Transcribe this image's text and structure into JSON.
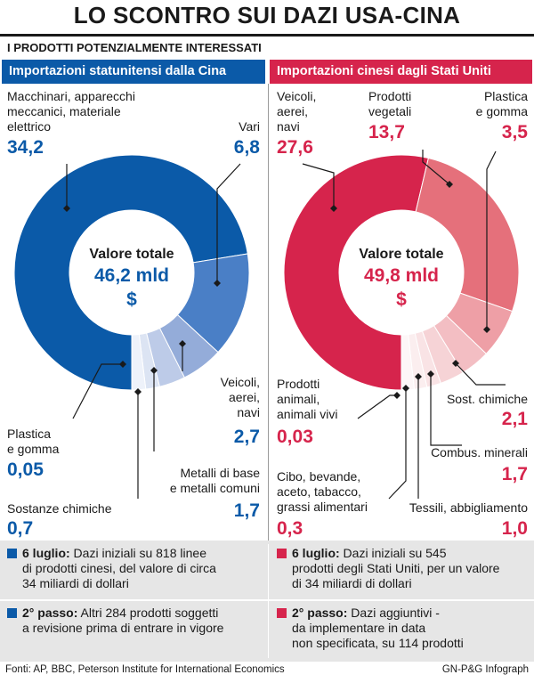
{
  "title": "LO SCONTRO SUI DAZI USA-CINA",
  "subtitle": "I PRODOTTI POTENZIALMENTE INTERESSATI",
  "colors": {
    "blue": "#0b5aa8",
    "red": "#d6244c"
  },
  "left": {
    "header": "Importazioni statunitensi dalla Cina",
    "center_label": "Valore totale",
    "center_value": "46,2 mld",
    "center_unit": "$",
    "labels": {
      "macchinari": "Macchinari, apparecchi\nmeccanici, materiale\nelettrico",
      "vari": "Vari",
      "veicoli": "Veicoli,\naerei,\nnavi",
      "metalli": "Metalli di base\ne metalli comuni",
      "plastica": "Plastica\ne gomma",
      "sostanze": "Sostanze chimiche"
    },
    "values": {
      "macchinari": "34,2",
      "vari": "6,8",
      "veicoli": "2,7",
      "metalli": "1,7",
      "plastica": "0,05",
      "sostanze": "0,7"
    }
  },
  "right": {
    "header": "Importazioni cinesi dagli Stati Uniti",
    "center_label": "Valore totale",
    "center_value": "49,8 mld",
    "center_unit": "$",
    "labels": {
      "veicoli": "Veicoli,\naerei,\nnavi",
      "vegetali": "Prodotti\nvegetali",
      "plastica": "Plastica\ne gomma",
      "animali": "Prodotti\nanimali,\nanimali vivi",
      "cibo": "Cibo, bevande,\naceto, tabacco,\ngrassi alimentari",
      "sostchim": "Sost. chimiche",
      "combus": "Combus. minerali",
      "tessili": "Tessili, abbigliamento"
    },
    "values": {
      "veicoli": "27,6",
      "vegetali": "13,7",
      "plastica": "3,5",
      "animali": "0,03",
      "cibo": "0,3",
      "sostchim": "2,1",
      "combus": "1,7",
      "tessili": "1,0"
    }
  },
  "chart_data": [
    {
      "type": "pie",
      "title": "Importazioni statunitensi dalla Cina",
      "total_label": "Valore totale 46,2 mld $",
      "categories": [
        "Macchinari, apparecchi meccanici, materiale elettrico",
        "Vari",
        "Veicoli, aerei, navi",
        "Metalli di base e metalli comuni",
        "Sostanze chimiche",
        "Plastica e gomma"
      ],
      "values": [
        34.2,
        6.8,
        2.7,
        1.7,
        0.7,
        0.05
      ],
      "colors": [
        "#0b5aa8",
        "#4a7fc6",
        "#94acd9",
        "#bdcbe8",
        "#dce4f3",
        "#eef2fa"
      ]
    },
    {
      "type": "pie",
      "title": "Importazioni cinesi dagli Stati Uniti",
      "total_label": "Valore totale 49,8 mld $",
      "categories": [
        "Veicoli, aerei, navi",
        "Prodotti vegetali",
        "Plastica e gomma",
        "Sost. chimiche",
        "Combus. minerali",
        "Tessili, abbigliamento",
        "Cibo, bevande, aceto, tabacco, grassi alimentari",
        "Prodotti animali, animali vivi"
      ],
      "values": [
        27.6,
        13.7,
        3.5,
        2.1,
        1.7,
        1.0,
        0.3,
        0.03
      ],
      "colors": [
        "#d6244c",
        "#e5707b",
        "#ee9fa6",
        "#f3bec3",
        "#f6d3d6",
        "#f9e3e5",
        "#fbeeef",
        "#fdf6f7"
      ]
    }
  ],
  "notes": {
    "left_1_bold": "6 luglio:",
    "left_1_text": " Dazi iniziali su 818 linee\ndi prodotti cinesi, del valore di circa\n34 miliardi di dollari",
    "left_2_bold": "2° passo:",
    "left_2_text": " Altri 284 prodotti soggetti\na revisione prima di entrare in vigore",
    "right_1_bold": "6 luglio:",
    "right_1_text": " Dazi iniziali su 545\nprodotti degli Stati Uniti, per un valore\ndi 34 miliardi di dollari",
    "right_2_bold": "2° passo:",
    "right_2_text": " Dazi aggiuntivi -\nda implementare in data\nnon specificata, su 114 prodotti"
  },
  "footer": {
    "sources": "Fonti: AP, BBC, Peterson Institute for International Economics",
    "credit": "GN-P&G Infograph"
  }
}
